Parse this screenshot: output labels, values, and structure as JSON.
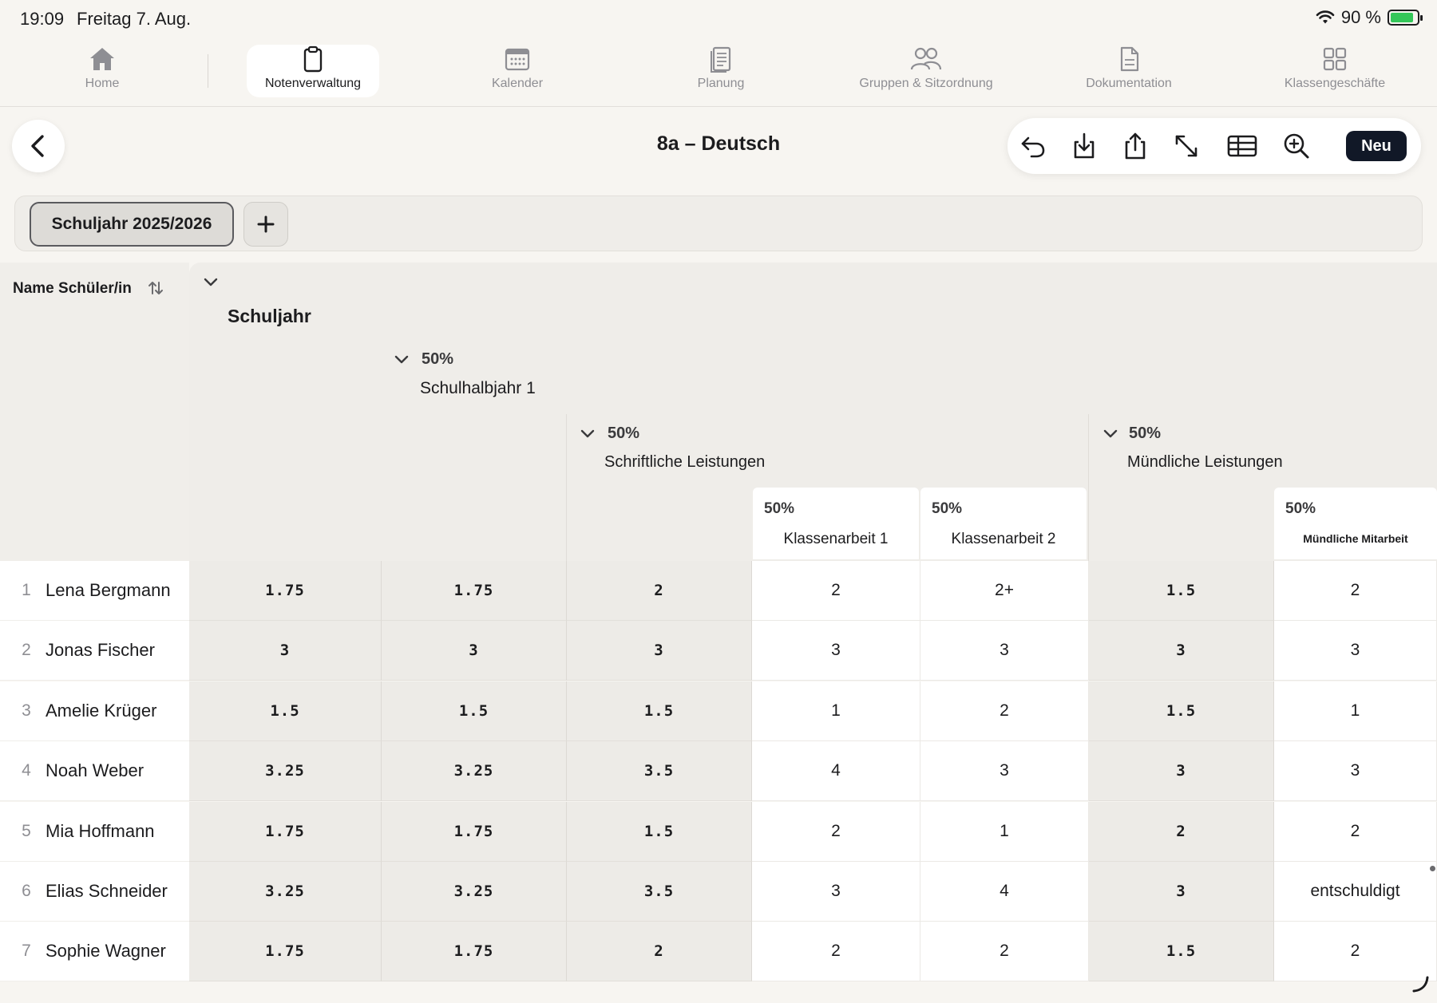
{
  "status": {
    "time": "19:09",
    "date": "Freitag 7. Aug.",
    "battery": "90 %"
  },
  "tabs": [
    {
      "label": "Home",
      "icon": "home-icon"
    },
    {
      "label": "Notenverwaltung",
      "icon": "clipboard-icon",
      "active": true
    },
    {
      "label": "Kalender",
      "icon": "calendar-icon"
    },
    {
      "label": "Planung",
      "icon": "document-lines-icon"
    },
    {
      "label": "Gruppen & Sitzordnung",
      "icon": "people-icon"
    },
    {
      "label": "Dokumentation",
      "icon": "file-icon"
    },
    {
      "label": "Klassengeschäfte",
      "icon": "grid-icon"
    }
  ],
  "header": {
    "title": "8a – Deutsch",
    "new_label": "Neu"
  },
  "years": {
    "active": "Schuljahr 2025/2026"
  },
  "table": {
    "name_header": "Name Schüler/in",
    "groups": {
      "year": {
        "label": "Schuljahr"
      },
      "half": {
        "pct": "50%",
        "label": "Schulhalbjahr 1"
      },
      "written": {
        "pct": "50%",
        "label": "Schriftliche Leistungen"
      },
      "oral": {
        "pct": "50%",
        "label": "Mündliche Leistungen"
      }
    },
    "leaves": [
      {
        "pct": "50%",
        "label": "Klassenarbeit 1"
      },
      {
        "pct": "50%",
        "label": "Klassenarbeit 2"
      },
      {
        "pct": "50%",
        "label": "Mündliche Mitarbeit"
      }
    ],
    "rows": [
      {
        "num": "1",
        "name": "Lena Bergmann",
        "year": "1.75",
        "half": "1.75",
        "written": "2",
        "ka1": "2",
        "ka2": "2+",
        "oral": "1.5",
        "mm": "2"
      },
      {
        "num": "2",
        "name": "Jonas Fischer",
        "year": "3",
        "half": "3",
        "written": "3",
        "ka1": "3",
        "ka2": "3",
        "oral": "3",
        "mm": "3"
      },
      {
        "num": "3",
        "name": "Amelie Krüger",
        "year": "1.5",
        "half": "1.5",
        "written": "1.5",
        "ka1": "1",
        "ka2": "2",
        "oral": "1.5",
        "mm": "1"
      },
      {
        "num": "4",
        "name": "Noah Weber",
        "year": "3.25",
        "half": "3.25",
        "written": "3.5",
        "ka1": "4",
        "ka2": "3",
        "oral": "3",
        "mm": "3"
      },
      {
        "num": "5",
        "name": "Mia Hoffmann",
        "year": "1.75",
        "half": "1.75",
        "written": "1.5",
        "ka1": "2",
        "ka2": "1",
        "oral": "2",
        "mm": "2"
      },
      {
        "num": "6",
        "name": "Elias Schneider",
        "year": "3.25",
        "half": "3.25",
        "written": "3.5",
        "ka1": "3",
        "ka2": "4",
        "oral": "3",
        "mm": "entschuldigt"
      },
      {
        "num": "7",
        "name": "Sophie Wagner",
        "year": "1.75",
        "half": "1.75",
        "written": "2",
        "ka1": "2",
        "ka2": "2",
        "oral": "1.5",
        "mm": "2"
      }
    ]
  }
}
